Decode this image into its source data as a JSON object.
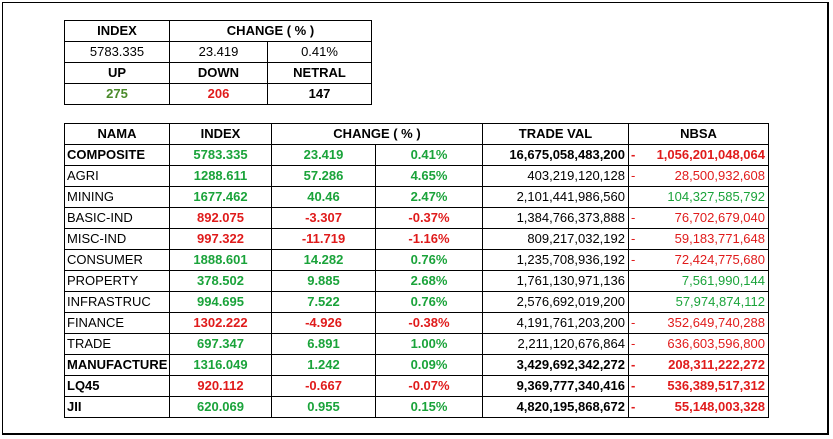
{
  "summary": {
    "headers": {
      "index": "INDEX",
      "change": "CHANGE ( % )"
    },
    "index_value": "5783.335",
    "change_value": "23.419",
    "change_pct": "0.41%",
    "breadth_headers": {
      "up": "UP",
      "down": "DOWN",
      "netral": "NETRAL"
    },
    "up": "275",
    "down": "206",
    "netral": "147"
  },
  "table": {
    "headers": {
      "nama": "NAMA",
      "index": "INDEX",
      "change": "CHANGE ( % )",
      "trade_val": "TRADE VAL",
      "nbsa": "NBSA"
    },
    "rows": [
      {
        "nama": "COMPOSITE",
        "index": "5783.335",
        "change": "23.419",
        "pct": "0.41%",
        "trade_val": "16,675,058,483,200",
        "nbsa_sign": "-",
        "nbsa": "1,056,201,048,064",
        "bold": true,
        "dir": "up",
        "nbsa_dir": "neg"
      },
      {
        "nama": "AGRI",
        "index": "1288.611",
        "change": "57.286",
        "pct": "4.65%",
        "trade_val": "403,219,120,128",
        "nbsa_sign": "-",
        "nbsa": "28,500,932,608",
        "bold": false,
        "dir": "up",
        "nbsa_dir": "neg"
      },
      {
        "nama": "MINING",
        "index": "1677.462",
        "change": "40.46",
        "pct": "2.47%",
        "trade_val": "2,101,441,986,560",
        "nbsa_sign": "",
        "nbsa": "104,327,585,792",
        "bold": false,
        "dir": "up",
        "nbsa_dir": "pos"
      },
      {
        "nama": "BASIC-IND",
        "index": "892.075",
        "change": "-3.307",
        "pct": "-0.37%",
        "trade_val": "1,384,766,373,888",
        "nbsa_sign": "-",
        "nbsa": "76,702,679,040",
        "bold": false,
        "dir": "down",
        "nbsa_dir": "neg"
      },
      {
        "nama": "MISC-IND",
        "index": "997.322",
        "change": "-11.719",
        "pct": "-1.16%",
        "trade_val": "809,217,032,192",
        "nbsa_sign": "-",
        "nbsa": "59,183,771,648",
        "bold": false,
        "dir": "down",
        "nbsa_dir": "neg"
      },
      {
        "nama": "CONSUMER",
        "index": "1888.601",
        "change": "14.282",
        "pct": "0.76%",
        "trade_val": "1,235,708,936,192",
        "nbsa_sign": "-",
        "nbsa": "72,424,775,680",
        "bold": false,
        "dir": "up",
        "nbsa_dir": "neg"
      },
      {
        "nama": "PROPERTY",
        "index": "378.502",
        "change": "9.885",
        "pct": "2.68%",
        "trade_val": "1,761,130,971,136",
        "nbsa_sign": "",
        "nbsa": "7,561,990,144",
        "bold": false,
        "dir": "up",
        "nbsa_dir": "pos"
      },
      {
        "nama": "INFRASTRUC",
        "index": "994.695",
        "change": "7.522",
        "pct": "0.76%",
        "trade_val": "2,576,692,019,200",
        "nbsa_sign": "",
        "nbsa": "57,974,874,112",
        "bold": false,
        "dir": "up",
        "nbsa_dir": "pos"
      },
      {
        "nama": "FINANCE",
        "index": "1302.222",
        "change": "-4.926",
        "pct": "-0.38%",
        "trade_val": "4,191,761,203,200",
        "nbsa_sign": "-",
        "nbsa": "352,649,740,288",
        "bold": false,
        "dir": "down",
        "nbsa_dir": "neg"
      },
      {
        "nama": "TRADE",
        "index": "697.347",
        "change": "6.891",
        "pct": "1.00%",
        "trade_val": "2,211,120,676,864",
        "nbsa_sign": "-",
        "nbsa": "636,603,596,800",
        "bold": false,
        "dir": "up",
        "nbsa_dir": "neg"
      },
      {
        "nama": "MANUFACTURE",
        "index": "1316.049",
        "change": "1.242",
        "pct": "0.09%",
        "trade_val": "3,429,692,342,272",
        "nbsa_sign": "-",
        "nbsa": "208,311,222,272",
        "bold": true,
        "dir": "up",
        "nbsa_dir": "neg"
      },
      {
        "nama": "LQ45",
        "index": "920.112",
        "change": "-0.667",
        "pct": "-0.07%",
        "trade_val": "9,369,777,340,416",
        "nbsa_sign": "-",
        "nbsa": "536,389,517,312",
        "bold": true,
        "dir": "down",
        "nbsa_dir": "neg"
      },
      {
        "nama": "JII",
        "index": "620.069",
        "change": "0.955",
        "pct": "0.15%",
        "trade_val": "4,820,195,868,672",
        "nbsa_sign": "-",
        "nbsa": "55,148,003,328",
        "bold": true,
        "dir": "up",
        "nbsa_dir": "neg"
      }
    ]
  },
  "colors": {
    "positive": "#1aa33a",
    "negative": "#e01b1b",
    "up_count": "#4a8a2a"
  }
}
